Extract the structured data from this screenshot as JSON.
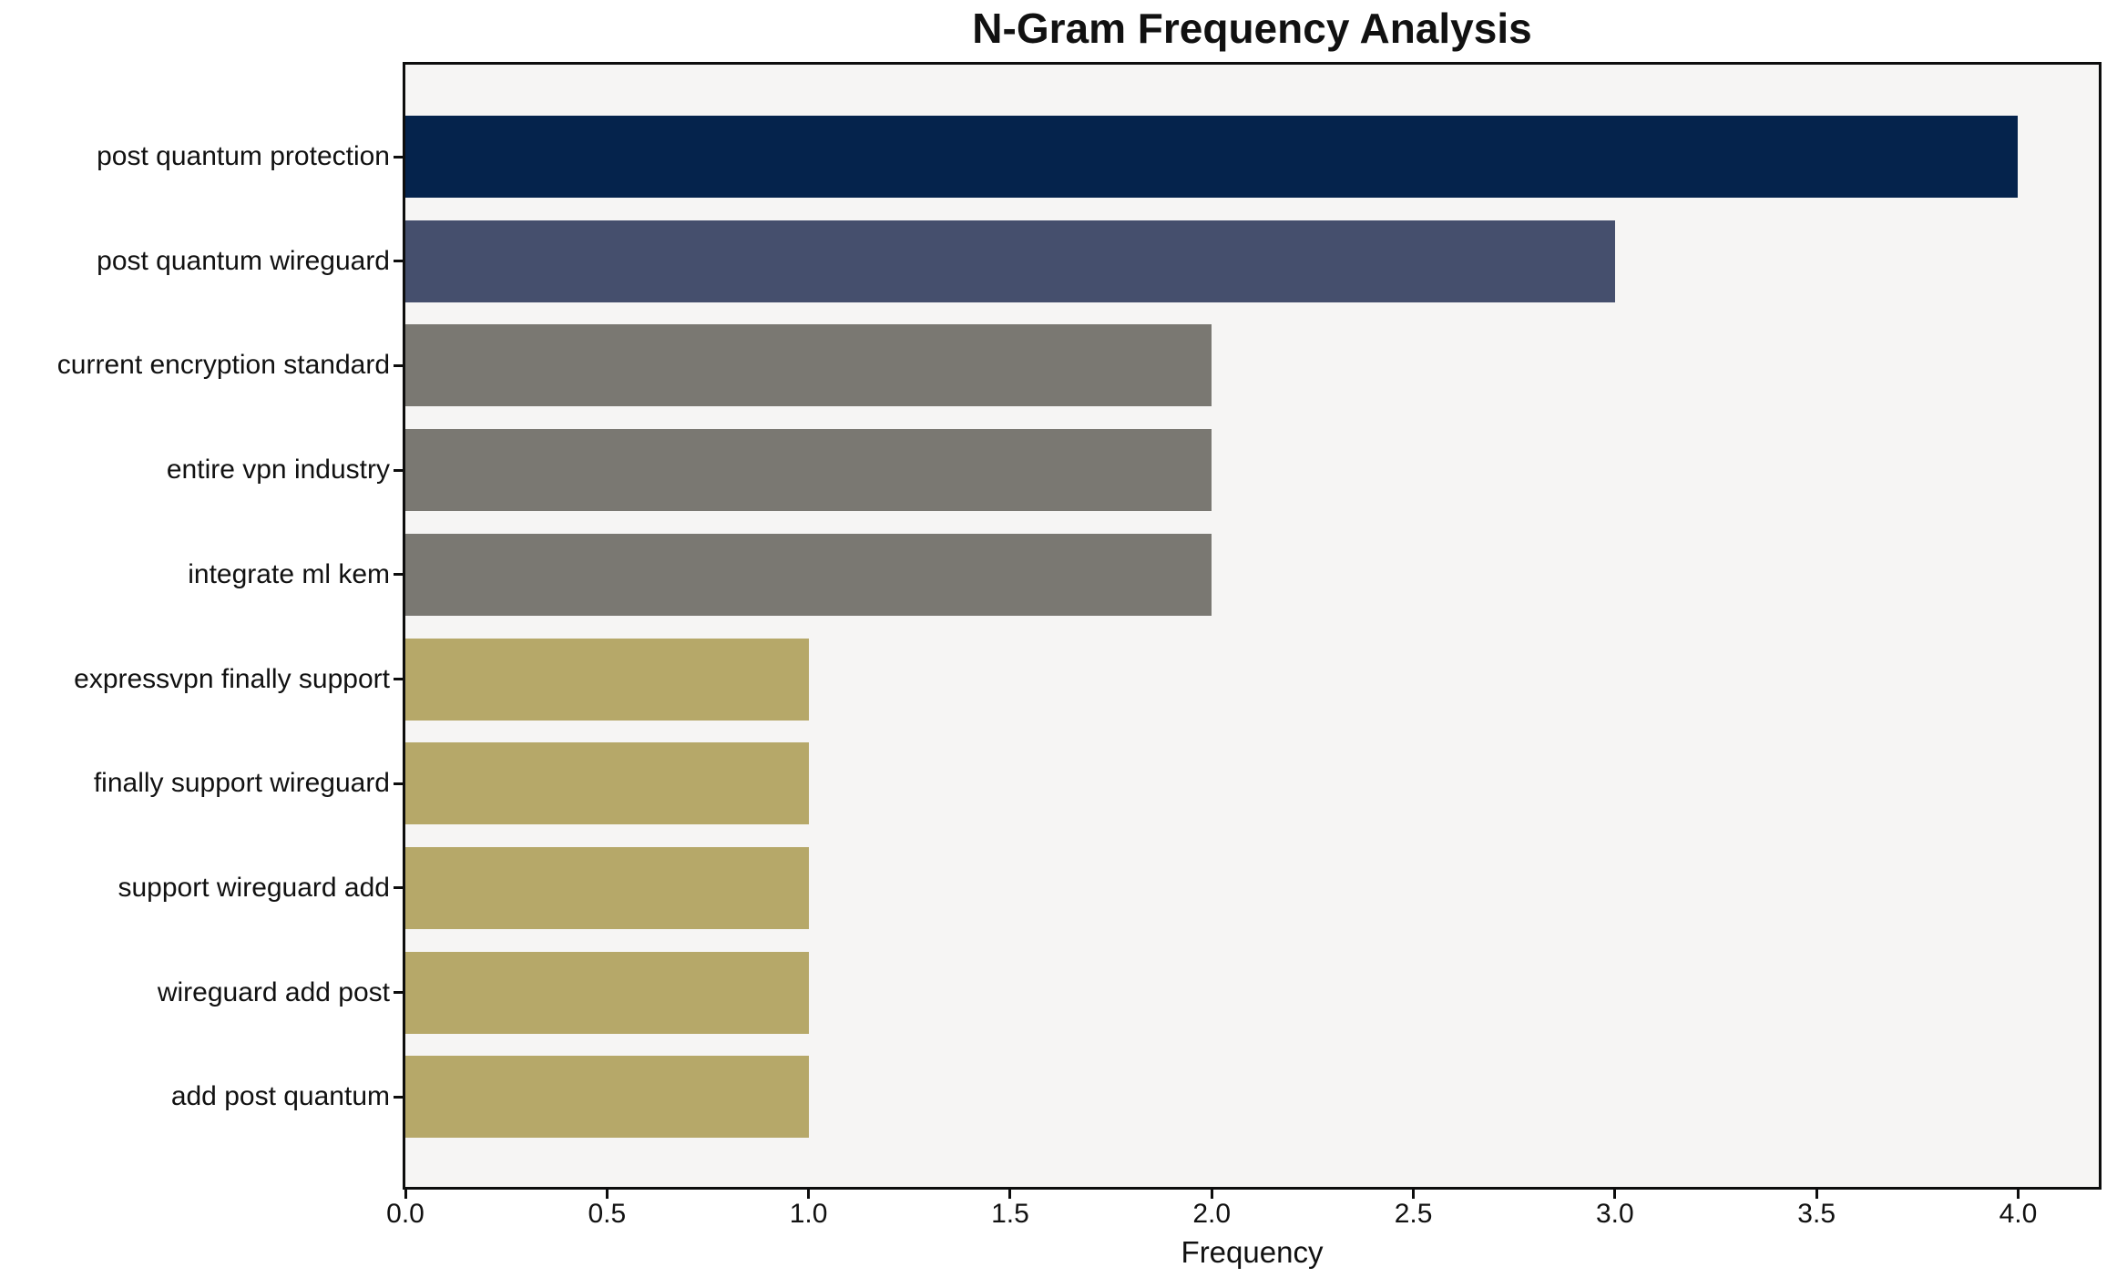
{
  "figure": {
    "background": "#ffffff"
  },
  "chart_data": {
    "type": "bar",
    "orientation": "horizontal",
    "title": "N-Gram Frequency Analysis",
    "xlabel": "Frequency",
    "ylabel": "",
    "categories": [
      "post quantum protection",
      "post quantum wireguard",
      "current encryption standard",
      "entire vpn industry",
      "integrate ml kem",
      "expressvpn finally support",
      "finally support wireguard",
      "support wireguard add",
      "wireguard add post",
      "add post quantum"
    ],
    "values": [
      4,
      3,
      2,
      2,
      2,
      1,
      1,
      1,
      1,
      1
    ],
    "bar_colors": [
      "#05234c",
      "#454f6d",
      "#7a7872",
      "#7a7872",
      "#7a7872",
      "#b6a869",
      "#b6a869",
      "#b6a869",
      "#b6a869",
      "#b6a869"
    ],
    "xlim": [
      0,
      4.2
    ],
    "xticks": [
      0,
      0.5,
      1,
      1.5,
      2,
      2.5,
      3,
      3.5,
      4
    ],
    "xtick_labels": [
      "0.0",
      "0.5",
      "1.0",
      "1.5",
      "2.0",
      "2.5",
      "3.0",
      "3.5",
      "4.0"
    ],
    "grid": false,
    "legend": null,
    "plot_background": "#f6f5f4",
    "spine_color": "#0d0d0d",
    "text_color": "#111111"
  }
}
